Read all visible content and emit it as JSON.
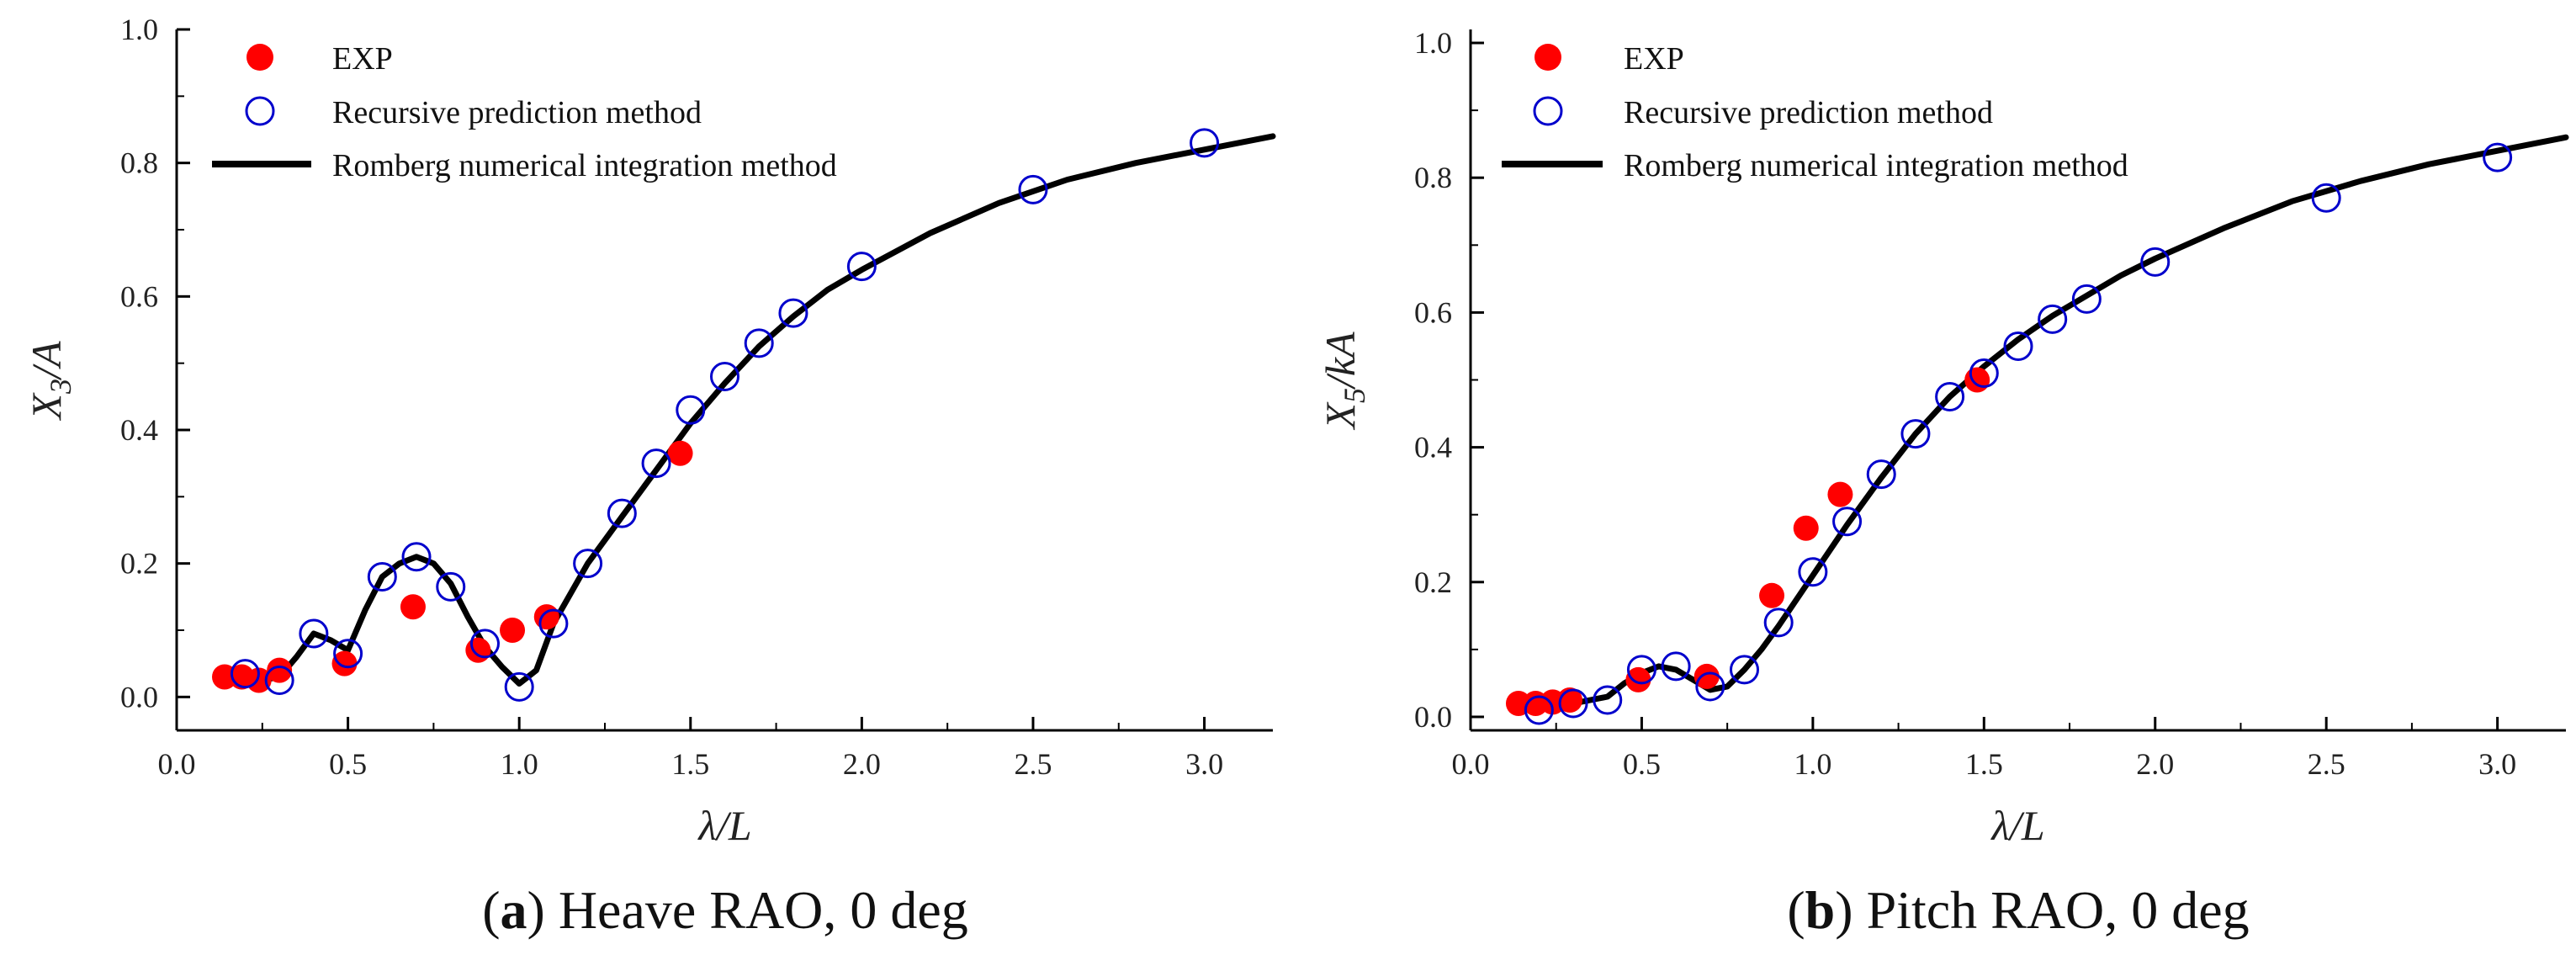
{
  "chart_data": [
    {
      "type": "scatter",
      "panel_letter": "a",
      "caption": "Heave RAO, 0 deg",
      "xlabel": "λ/L",
      "ylabel_main": "X",
      "ylabel_sub": "3",
      "ylabel_tail": "/A",
      "xlim": [
        0.0,
        3.2
      ],
      "ylim": [
        -0.05,
        1.0
      ],
      "xticks": [
        "0.0",
        "0.5",
        "1.0",
        "1.5",
        "2.0",
        "2.5",
        "3.0"
      ],
      "yticks": [
        "0.0",
        "0.2",
        "0.4",
        "0.6",
        "0.8",
        "1.0"
      ],
      "legend": [
        "EXP",
        "Recursive prediction method",
        "Romberg numerical integration method"
      ],
      "series": [
        {
          "name": "EXP",
          "x": [
            0.14,
            0.19,
            0.24,
            0.3,
            0.49,
            0.69,
            0.88,
            0.98,
            1.08,
            1.47
          ],
          "y": [
            0.03,
            0.03,
            0.025,
            0.04,
            0.05,
            0.135,
            0.07,
            0.1,
            0.12,
            0.365
          ]
        },
        {
          "name": "Recursive prediction method",
          "x": [
            0.2,
            0.3,
            0.4,
            0.5,
            0.6,
            0.7,
            0.8,
            0.9,
            1.0,
            1.1,
            1.2,
            1.3,
            1.4,
            1.5,
            1.6,
            1.7,
            1.8,
            2.0,
            2.5,
            3.0
          ],
          "y": [
            0.035,
            0.025,
            0.095,
            0.065,
            0.18,
            0.21,
            0.165,
            0.08,
            0.015,
            0.11,
            0.2,
            0.275,
            0.35,
            0.43,
            0.48,
            0.53,
            0.575,
            0.645,
            0.76,
            0.83
          ]
        },
        {
          "name": "Romberg numerical integration method",
          "x": [
            0.2,
            0.25,
            0.3,
            0.35,
            0.4,
            0.45,
            0.5,
            0.55,
            0.6,
            0.65,
            0.7,
            0.75,
            0.8,
            0.85,
            0.9,
            0.95,
            1.0,
            1.05,
            1.1,
            1.2,
            1.3,
            1.4,
            1.5,
            1.6,
            1.7,
            1.8,
            1.9,
            2.0,
            2.2,
            2.4,
            2.6,
            2.8,
            3.0,
            3.2
          ],
          "y": [
            0.03,
            0.025,
            0.03,
            0.06,
            0.095,
            0.085,
            0.07,
            0.13,
            0.18,
            0.2,
            0.21,
            0.2,
            0.17,
            0.12,
            0.075,
            0.045,
            0.02,
            0.04,
            0.11,
            0.2,
            0.27,
            0.34,
            0.41,
            0.47,
            0.525,
            0.57,
            0.61,
            0.64,
            0.695,
            0.74,
            0.775,
            0.8,
            0.82,
            0.84
          ]
        }
      ]
    },
    {
      "type": "scatter",
      "panel_letter": "b",
      "caption": "Pitch RAO, 0 deg",
      "xlabel": "λ/L",
      "ylabel_main": "X",
      "ylabel_sub": "5",
      "ylabel_tail": "/kA",
      "xlim": [
        0.0,
        3.2
      ],
      "ylim": [
        -0.02,
        1.02
      ],
      "xticks": [
        "0.0",
        "0.5",
        "1.0",
        "1.5",
        "2.0",
        "2.5",
        "3.0"
      ],
      "yticks": [
        "0.0",
        "0.2",
        "0.4",
        "0.6",
        "0.8",
        "1.0"
      ],
      "legend": [
        "EXP",
        "Recursive prediction method",
        "Romberg numerical integration method"
      ],
      "series": [
        {
          "name": "EXP",
          "x": [
            0.14,
            0.19,
            0.24,
            0.29,
            0.49,
            0.69,
            0.88,
            0.98,
            1.08,
            1.48
          ],
          "y": [
            0.02,
            0.02,
            0.022,
            0.025,
            0.055,
            0.06,
            0.18,
            0.28,
            0.33,
            0.5
          ]
        },
        {
          "name": "Recursive prediction method",
          "x": [
            0.2,
            0.3,
            0.4,
            0.5,
            0.6,
            0.7,
            0.8,
            0.9,
            1.0,
            1.1,
            1.2,
            1.3,
            1.4,
            1.5,
            1.6,
            1.7,
            1.8,
            2.0,
            2.5,
            3.0
          ],
          "y": [
            0.01,
            0.02,
            0.025,
            0.07,
            0.075,
            0.045,
            0.07,
            0.14,
            0.215,
            0.29,
            0.36,
            0.42,
            0.475,
            0.51,
            0.55,
            0.59,
            0.62,
            0.675,
            0.77,
            0.83
          ]
        },
        {
          "name": "Romberg numerical integration method",
          "x": [
            0.2,
            0.3,
            0.4,
            0.45,
            0.5,
            0.55,
            0.6,
            0.65,
            0.7,
            0.75,
            0.8,
            0.85,
            0.9,
            1.0,
            1.1,
            1.2,
            1.3,
            1.4,
            1.5,
            1.6,
            1.7,
            1.8,
            1.9,
            2.0,
            2.2,
            2.4,
            2.6,
            2.8,
            3.0,
            3.2
          ],
          "y": [
            0.015,
            0.02,
            0.03,
            0.05,
            0.065,
            0.075,
            0.07,
            0.055,
            0.04,
            0.045,
            0.07,
            0.1,
            0.135,
            0.21,
            0.285,
            0.355,
            0.42,
            0.475,
            0.52,
            0.56,
            0.595,
            0.625,
            0.655,
            0.68,
            0.725,
            0.765,
            0.795,
            0.82,
            0.84,
            0.86
          ]
        }
      ]
    }
  ]
}
